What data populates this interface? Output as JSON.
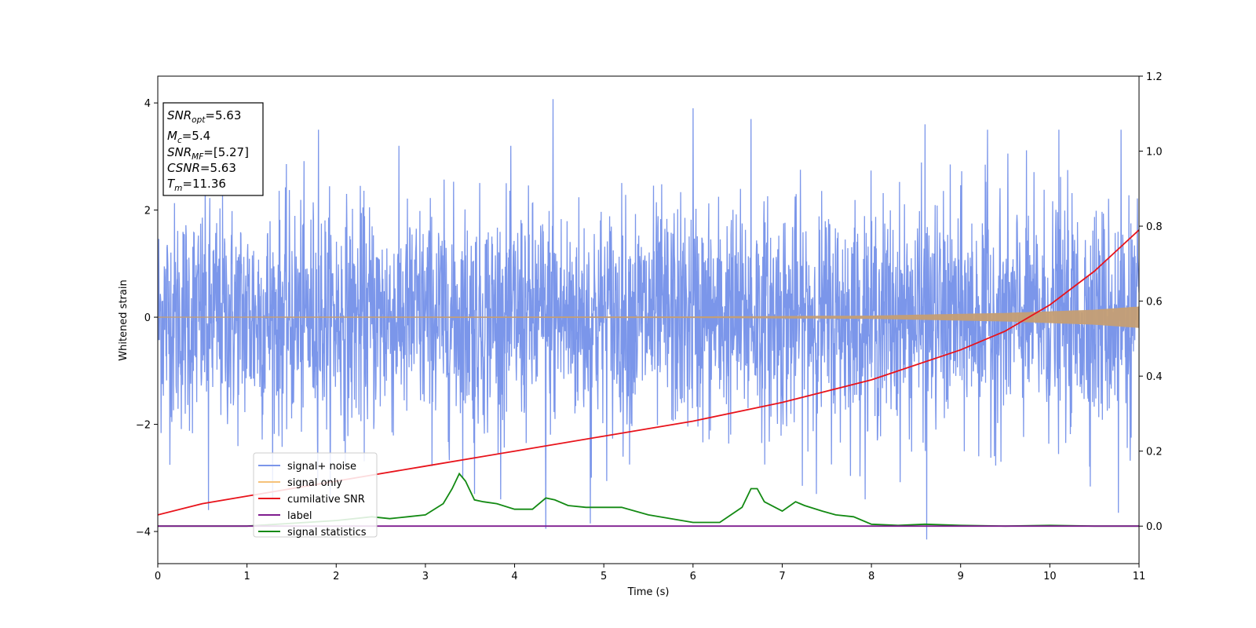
{
  "chart_data": {
    "type": "line",
    "xlabel": "Time (s)",
    "ylabel": "Whitened strain",
    "xlim": [
      0,
      11
    ],
    "ylim": [
      -4.6,
      4.5
    ],
    "y2lim": [
      -0.1,
      1.2
    ],
    "x_ticks": [
      "0",
      "1",
      "2",
      "3",
      "4",
      "5",
      "6",
      "7",
      "8",
      "9",
      "10",
      "11"
    ],
    "y_ticks": [
      "4",
      "2",
      "0",
      "−2",
      "−4"
    ],
    "y2_ticks": [
      "1.2",
      "1.0",
      "0.8",
      "0.6",
      "0.4",
      "0.2",
      "0.0"
    ],
    "grid": false,
    "legend_position": "lower-left",
    "series": [
      {
        "name": "signal+ noise",
        "color": "#7b96ea",
        "axis": "left",
        "kind": "noise",
        "typical_amplitude": 1.8,
        "spikes": [
          [
            1.8,
            3.5
          ],
          [
            4.43,
            4.07
          ],
          [
            6.0,
            3.9
          ],
          [
            6.65,
            3.7
          ],
          [
            8.6,
            3.6
          ],
          [
            9.3,
            3.5
          ],
          [
            10.1,
            3.5
          ],
          [
            10.8,
            3.5
          ],
          [
            4.35,
            -3.95
          ],
          [
            8.62,
            -4.15
          ],
          [
            10.77,
            -3.65
          ],
          [
            0.57,
            -3.6
          ],
          [
            4.85,
            -3.85
          ],
          [
            3.55,
            -3.3
          ]
        ]
      },
      {
        "name": "signal only",
        "color": "#f5c27a",
        "axis": "left",
        "kind": "chirp",
        "envelope": [
          [
            0,
            0.01
          ],
          [
            6,
            0.015
          ],
          [
            8,
            0.03
          ],
          [
            9.5,
            0.08
          ],
          [
            10.5,
            0.14
          ],
          [
            11,
            0.2
          ]
        ]
      },
      {
        "name": "cumilative SNR",
        "color": "#e8131b",
        "axis": "right",
        "x": [
          0,
          0.5,
          1,
          2,
          3,
          4,
          5,
          6,
          7,
          8,
          9,
          9.5,
          10,
          10.5,
          11
        ],
        "y": [
          0.03,
          0.06,
          0.08,
          0.12,
          0.16,
          0.2,
          0.24,
          0.28,
          0.33,
          0.39,
          0.47,
          0.52,
          0.59,
          0.68,
          0.79
        ]
      },
      {
        "name": "label",
        "color": "#7f1d8f",
        "axis": "right",
        "x": [
          0,
          11
        ],
        "y": [
          0.0,
          0.0
        ]
      },
      {
        "name": "signal statistics",
        "color": "#138a13",
        "axis": "right",
        "x": [
          0,
          1,
          2,
          2.4,
          2.6,
          2.8,
          3.0,
          3.2,
          3.3,
          3.38,
          3.45,
          3.55,
          3.65,
          3.8,
          4.0,
          4.2,
          4.35,
          4.45,
          4.6,
          4.8,
          5.0,
          5.2,
          5.5,
          6.0,
          6.3,
          6.55,
          6.65,
          6.72,
          6.8,
          7.0,
          7.15,
          7.25,
          7.45,
          7.6,
          7.8,
          8.0,
          8.3,
          8.6,
          9.0,
          9.5,
          10.0,
          10.5,
          11.0
        ],
        "y": [
          0.0,
          0.0,
          0.015,
          0.025,
          0.02,
          0.025,
          0.03,
          0.06,
          0.1,
          0.14,
          0.12,
          0.07,
          0.065,
          0.06,
          0.045,
          0.045,
          0.075,
          0.07,
          0.055,
          0.05,
          0.05,
          0.05,
          0.03,
          0.01,
          0.01,
          0.05,
          0.1,
          0.1,
          0.065,
          0.04,
          0.065,
          0.055,
          0.04,
          0.03,
          0.025,
          0.005,
          0.002,
          0.005,
          0.002,
          0.0,
          0.002,
          0.0,
          0.0
        ]
      }
    ],
    "legend": [
      "signal+ noise",
      "signal only",
      "cumilative SNR",
      "label",
      "signal statistics"
    ],
    "info_box": {
      "snr_opt_label": "SNR",
      "snr_opt_sub": "opt",
      "snr_opt_value": "=5.63",
      "mc_label": "M",
      "mc_sub": "c",
      "mc_value": "=5.4",
      "snr_mf_label": "SNR",
      "snr_mf_sub": "MF",
      "snr_mf_value": "=[5.27]",
      "csnr_label": "CSNR",
      "csnr_value": "=5.63",
      "tm_label": "T",
      "tm_sub": "m",
      "tm_value": "=11.36"
    }
  }
}
